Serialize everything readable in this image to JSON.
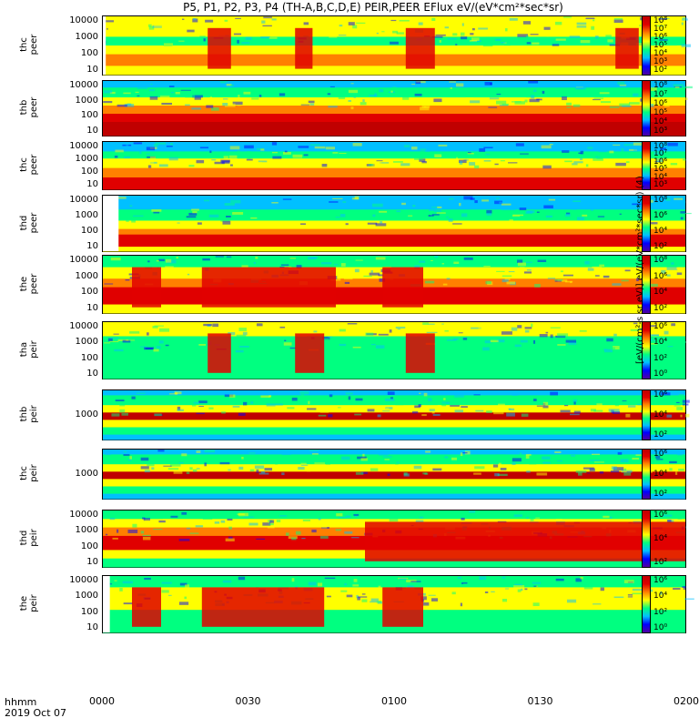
{
  "title": "P5, P1, P2, P3, P4 (TH-A,B,C,D,E) PEIR,PEER EFlux eV/(eV*cm²*sec*sr)",
  "x_axis_label_line1": "hhmm",
  "x_axis_label_line2": "2019 Oct 07",
  "x_ticks": [
    "0000",
    "0030",
    "0100",
    "0130",
    "0200"
  ],
  "colorbar_label": "[eV/(cm²-s sr eV)] eV/(eV*cm²*sec*sr) (4)",
  "colors": {
    "scale": [
      "#5000a0",
      "#0000ff",
      "#00c0ff",
      "#00ff80",
      "#ffff00",
      "#ff8000",
      "#e00000",
      "#c00000"
    ],
    "fill_band": "#ff0000"
  },
  "chart_data": [
    {
      "type": "heatmap",
      "ylabel": [
        "thc",
        "peer"
      ],
      "y_ticks": [
        "10000",
        "1000",
        "100",
        "10"
      ],
      "cbar_ticks": [
        "10⁸",
        "10⁷",
        "10⁶",
        "10⁵",
        "10⁴",
        "10³",
        "10²"
      ],
      "xlim": [
        "0000",
        "0200"
      ],
      "yscale": "log"
    },
    {
      "type": "heatmap",
      "ylabel": [
        "thb",
        "peer"
      ],
      "y_ticks": [
        "10000",
        "1000",
        "100",
        "10"
      ],
      "cbar_ticks": [
        "10⁸",
        "10⁷",
        "10⁶",
        "10⁵",
        "10⁴",
        "10³"
      ],
      "xlim": [
        "0000",
        "0200"
      ],
      "yscale": "log"
    },
    {
      "type": "heatmap",
      "ylabel": [
        "thc",
        "peer"
      ],
      "y_ticks": [
        "10000",
        "1000",
        "100",
        "10"
      ],
      "cbar_ticks": [
        "10⁸",
        "10⁷",
        "10⁶",
        "10⁵",
        "10⁴",
        "10³"
      ],
      "xlim": [
        "0000",
        "0200"
      ],
      "yscale": "log"
    },
    {
      "type": "heatmap",
      "ylabel": [
        "thd",
        "peer"
      ],
      "y_ticks": [
        "10000",
        "1000",
        "100",
        "10"
      ],
      "cbar_ticks": [
        "10⁸",
        "10⁶",
        "10⁴",
        "10²"
      ],
      "xlim": [
        "0000",
        "0200"
      ],
      "yscale": "log"
    },
    {
      "type": "heatmap",
      "ylabel": [
        "the",
        "peer"
      ],
      "y_ticks": [
        "10000",
        "1000",
        "100",
        "10"
      ],
      "cbar_ticks": [
        "10⁸",
        "10⁶",
        "10⁴",
        "10²"
      ],
      "xlim": [
        "0000",
        "0200"
      ],
      "yscale": "log"
    },
    {
      "type": "heatmap",
      "ylabel": [
        "tha",
        "peir"
      ],
      "y_ticks": [
        "10000",
        "1000",
        "100",
        "10"
      ],
      "cbar_ticks": [
        "10⁶",
        "10⁴",
        "10²",
        "10⁰"
      ],
      "xlim": [
        "0000",
        "0200"
      ],
      "yscale": "log"
    },
    {
      "type": "heatmap",
      "ylabel": [
        "thb",
        "peir"
      ],
      "y_ticks": [
        "1000"
      ],
      "cbar_ticks": [
        "10⁶",
        "10⁴",
        "10²"
      ],
      "xlim": [
        "0000",
        "0200"
      ],
      "yscale": "log"
    },
    {
      "type": "heatmap",
      "ylabel": [
        "thc",
        "peir"
      ],
      "y_ticks": [
        "1000"
      ],
      "cbar_ticks": [
        "10⁶",
        "10⁴",
        "10²"
      ],
      "xlim": [
        "0000",
        "0200"
      ],
      "yscale": "log"
    },
    {
      "type": "heatmap",
      "ylabel": [
        "thd",
        "peir"
      ],
      "y_ticks": [
        "10000",
        "1000",
        "100",
        "10"
      ],
      "cbar_ticks": [
        "10⁶",
        "10⁴",
        "10²"
      ],
      "xlim": [
        "0000",
        "0200"
      ],
      "yscale": "log"
    },
    {
      "type": "heatmap",
      "ylabel": [
        "the",
        "peir"
      ],
      "y_ticks": [
        "10000",
        "1000",
        "100",
        "10"
      ],
      "cbar_ticks": [
        "10⁶",
        "10⁴",
        "10²",
        "10⁰"
      ],
      "xlim": [
        "0000",
        "0200"
      ],
      "yscale": "log"
    }
  ]
}
